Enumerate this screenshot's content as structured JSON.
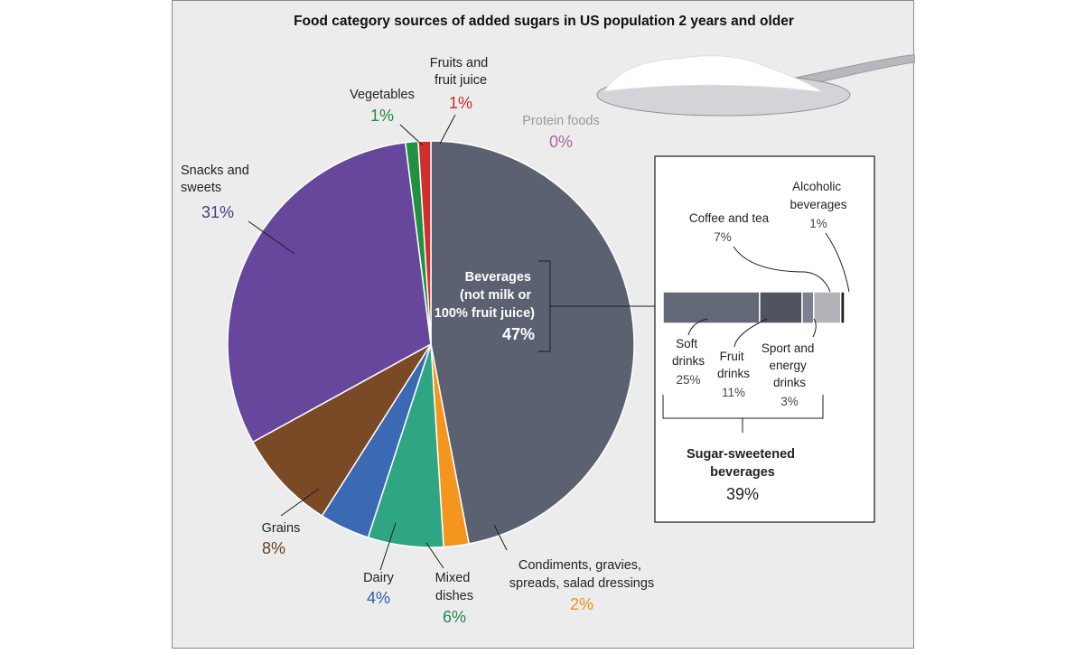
{
  "chart_data": {
    "type": "pie",
    "title": "Food category sources of added sugars in US population 2 years and older",
    "slices": [
      {
        "key": "beverages",
        "label_lines": [
          "Beverages",
          "(not milk or",
          "100% fruit juice)"
        ],
        "value": 47,
        "value_label": "47%",
        "color": "#5b6170",
        "pct_color": "#ffffff"
      },
      {
        "key": "condiments",
        "label_lines": [
          "Condiments, gravies,",
          "spreads, salad dressings"
        ],
        "value": 2,
        "value_label": "2%",
        "color": "#f4961e",
        "pct_color": "#f0901c"
      },
      {
        "key": "mixed",
        "label_lines": [
          "Mixed",
          "dishes"
        ],
        "value": 6,
        "value_label": "6%",
        "color": "#2ea583",
        "pct_color": "#22854a"
      },
      {
        "key": "dairy",
        "label_lines": [
          "Dairy"
        ],
        "value": 4,
        "value_label": "4%",
        "color": "#3b69b3",
        "pct_color": "#2f5ea8"
      },
      {
        "key": "grains",
        "label_lines": [
          "Grains"
        ],
        "value": 8,
        "value_label": "8%",
        "color": "#7a4a27",
        "pct_color": "#6b3f1f"
      },
      {
        "key": "snacks",
        "label_lines": [
          "Snacks and",
          "sweets"
        ],
        "value": 31,
        "value_label": "31%",
        "color": "#67479c",
        "pct_color": "#4f3589"
      },
      {
        "key": "vegetables",
        "label_lines": [
          "Vegetables"
        ],
        "value": 1,
        "value_label": "1%",
        "color": "#1f9140",
        "pct_color": "#1f8a3b"
      },
      {
        "key": "fruits",
        "label_lines": [
          "Fruits and",
          "fruit juice"
        ],
        "value": 1,
        "value_label": "1%",
        "color": "#d12e2e",
        "pct_color": "#c92a2a"
      },
      {
        "key": "protein",
        "label_lines": [
          "Protein foods"
        ],
        "value": 0,
        "value_label": "0%",
        "color": "#b06b9e",
        "pct_color": "#a9699a"
      }
    ],
    "breakdown": {
      "title_lines": [
        "Sugar-sweetened",
        "beverages"
      ],
      "title_value_label": "39%",
      "segments": [
        {
          "key": "soft",
          "label_lines": [
            "Soft",
            "drinks"
          ],
          "value": 25,
          "value_label": "25%",
          "color": "#636876"
        },
        {
          "key": "fruitdrinks",
          "label_lines": [
            "Fruit",
            "drinks"
          ],
          "value": 11,
          "value_label": "11%",
          "color": "#50545f"
        },
        {
          "key": "sport",
          "label_lines": [
            "Sport and",
            "energy",
            "drinks"
          ],
          "value": 3,
          "value_label": "3%",
          "color": "#7c8090"
        },
        {
          "key": "coffee",
          "label_lines": [
            "Coffee and tea"
          ],
          "value": 7,
          "value_label": "7%",
          "color": "#b2b2b8"
        },
        {
          "key": "alcohol",
          "label_lines": [
            "Alcoholic",
            "beverages"
          ],
          "value": 1,
          "value_label": "1%",
          "color": "#1e1e24"
        }
      ]
    }
  }
}
